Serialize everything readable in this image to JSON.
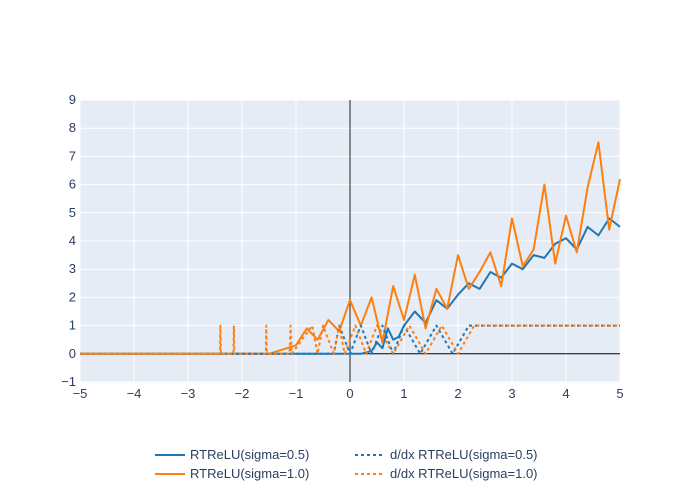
{
  "chart_data": {
    "type": "line",
    "title": "",
    "xlabel": "",
    "ylabel": "",
    "xlim": [
      -5,
      5
    ],
    "ylim": [
      -1,
      9
    ],
    "x_ticks": [
      -5,
      -4,
      -3,
      -2,
      -1,
      0,
      1,
      2,
      3,
      4,
      5
    ],
    "y_ticks": [
      -1,
      0,
      1,
      2,
      3,
      4,
      5,
      6,
      7,
      8,
      9
    ],
    "x_tick_labels": [
      "−5",
      "−4",
      "−3",
      "−2",
      "−1",
      "0",
      "1",
      "2",
      "3",
      "4",
      "5"
    ],
    "y_tick_labels": [
      "−1",
      "0",
      "1",
      "2",
      "3",
      "4",
      "5",
      "6",
      "7",
      "8",
      "9"
    ],
    "grid": true,
    "legend_position": "bottom-center",
    "background_color": "#e5ecf6",
    "zero_line_x": 0,
    "zero_line_y": 0,
    "series": [
      {
        "name": "RTReLU(sigma=0.5)",
        "color": "#1f77b4",
        "dash": "solid",
        "description": "noisy ReLU: ~0 for x<0.3, then roughly x plus noise",
        "x": [
          -5,
          -3,
          -1,
          0.0,
          0.2,
          0.4,
          0.5,
          0.6,
          0.7,
          0.8,
          0.9,
          1.0,
          1.2,
          1.4,
          1.6,
          1.8,
          2.0,
          2.2,
          2.4,
          2.6,
          2.8,
          3.0,
          3.2,
          3.4,
          3.6,
          3.8,
          4.0,
          4.2,
          4.4,
          4.6,
          4.8,
          5.0
        ],
        "y": [
          0,
          0,
          0,
          0.0,
          0.0,
          0.1,
          0.4,
          0.2,
          0.9,
          0.5,
          0.6,
          1.0,
          1.5,
          1.1,
          1.9,
          1.6,
          2.1,
          2.5,
          2.3,
          2.9,
          2.7,
          3.2,
          3.0,
          3.5,
          3.4,
          3.9,
          4.1,
          3.7,
          4.5,
          4.2,
          4.8,
          4.5
        ]
      },
      {
        "name": "RTReLU(sigma=1.0)",
        "color": "#ff7f0e",
        "dash": "solid",
        "description": "noisier ReLU: ~0 for x<-1, spikes up to ~2 near 0, then roughly x plus large noise",
        "x": [
          -5,
          -3,
          -1.5,
          -1.0,
          -0.8,
          -0.6,
          -0.4,
          -0.2,
          0.0,
          0.2,
          0.4,
          0.6,
          0.8,
          1.0,
          1.2,
          1.4,
          1.6,
          1.8,
          2.0,
          2.2,
          2.4,
          2.6,
          2.8,
          3.0,
          3.2,
          3.4,
          3.6,
          3.8,
          4.0,
          4.2,
          4.4,
          4.6,
          4.8,
          5.0
        ],
        "y": [
          0,
          0,
          0,
          0.3,
          0.9,
          0.5,
          1.2,
          0.8,
          1.9,
          1.0,
          2.0,
          0.4,
          2.4,
          1.2,
          2.8,
          0.9,
          2.3,
          1.6,
          3.5,
          2.3,
          2.9,
          3.6,
          2.4,
          4.8,
          3.1,
          3.7,
          6.0,
          3.2,
          4.9,
          3.6,
          5.9,
          7.5,
          4.4,
          6.2
        ]
      },
      {
        "name": "d/dx RTReLU(sigma=0.5)",
        "color": "#1f77b4",
        "dash": "dot",
        "description": "derivative: 0 for x<0, flickers between 0 and 1 near 0..2.5, then 1",
        "x": [
          -5,
          -0.3,
          -0.2,
          0.0,
          0.2,
          0.4,
          0.6,
          0.8,
          1.0,
          1.3,
          1.6,
          1.9,
          2.2,
          2.5,
          5.0
        ],
        "y": [
          0,
          0,
          1,
          0,
          1,
          0,
          1,
          0,
          1,
          0,
          1,
          0,
          1,
          1,
          1
        ]
      },
      {
        "name": "d/dx RTReLU(sigma=1.0)",
        "color": "#ff7f0e",
        "dash": "dot",
        "description": "derivative: spikes to 1 near -2.4, -2.1, -1.5, around -1..0, flickers 0..2.5, then 1",
        "x": [
          -5,
          -2.41,
          -2.4,
          -2.39,
          -2.16,
          -2.15,
          -2.14,
          -1.56,
          -1.55,
          -1.54,
          -1.12,
          -1.1,
          -1.08,
          -0.7,
          -0.6,
          -0.5,
          -0.3,
          -0.2,
          -0.1,
          0.1,
          0.3,
          0.5,
          0.8,
          1.1,
          1.4,
          1.7,
          2.0,
          2.3,
          2.5,
          5.0
        ],
        "y": [
          0,
          0,
          1,
          0,
          0,
          1,
          0,
          0,
          1,
          0,
          0,
          1,
          0,
          1,
          0,
          1,
          0,
          1,
          0,
          1,
          0,
          1,
          0,
          1,
          0,
          1,
          0,
          1,
          1,
          1
        ]
      }
    ]
  }
}
